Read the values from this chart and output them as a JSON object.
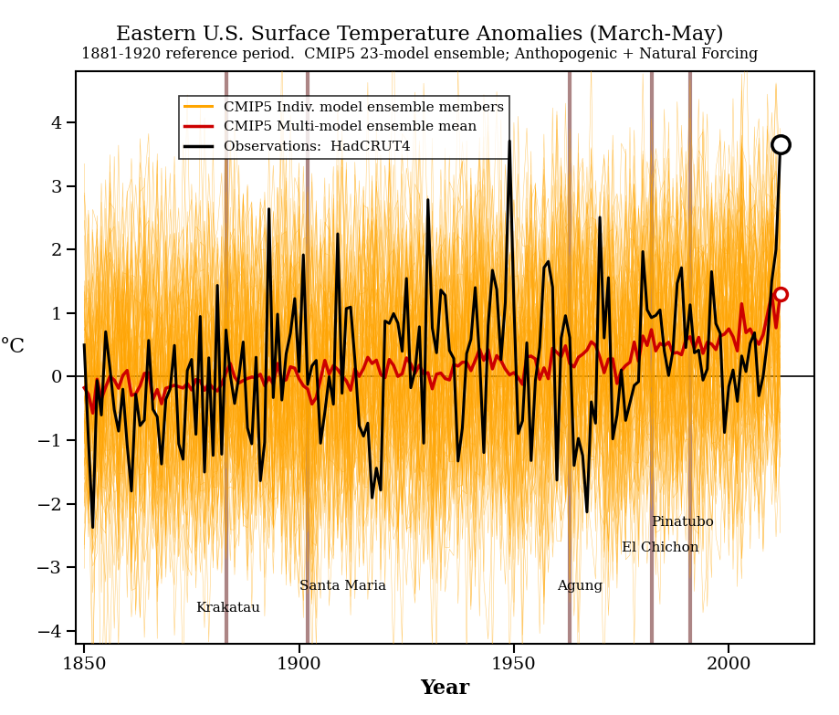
{
  "title": "Eastern U.S. Surface Temperature Anomalies (March-May)",
  "subtitle": "1881-1920 reference period.  CMIP5 23-model ensemble; Anthopogenic + Natural Forcing",
  "xlabel": "Year",
  "ylabel": "°C",
  "xlim": [
    1848,
    2020
  ],
  "ylim": [
    -4.2,
    4.8
  ],
  "yticks": [
    -4,
    -3,
    -2,
    -1,
    0,
    1,
    2,
    3,
    4
  ],
  "xticks": [
    1850,
    1900,
    1950,
    2000
  ],
  "volcano_years": [
    1883,
    1902,
    1963,
    1982,
    1991
  ],
  "volcano_color": "#9e7070",
  "obs_color": "#000000",
  "ensemble_mean_color": "#cc0000",
  "ensemble_member_color": "#FFA500",
  "obs_2012_value": 3.65,
  "ensemble_2012_value": 1.3,
  "ref_year_start": 1881,
  "ref_year_end": 1920,
  "n_ensemble": 80,
  "seed": 42,
  "background_color": "#ffffff",
  "legend_labels": [
    "CMIP5 Indiv. model ensemble members",
    "CMIP5 Multi-model ensemble mean",
    "Observations:  HadCRUT4"
  ],
  "krakatau_x": 1876,
  "krakatau_y": -3.55,
  "santamaria_x": 1900,
  "santamaria_y": -3.2,
  "agung_x": 1960,
  "agung_y": -3.2,
  "elchichon_x": 1975,
  "elchichon_y": -2.6,
  "pinatubo_x": 1982,
  "pinatubo_y": -2.2
}
